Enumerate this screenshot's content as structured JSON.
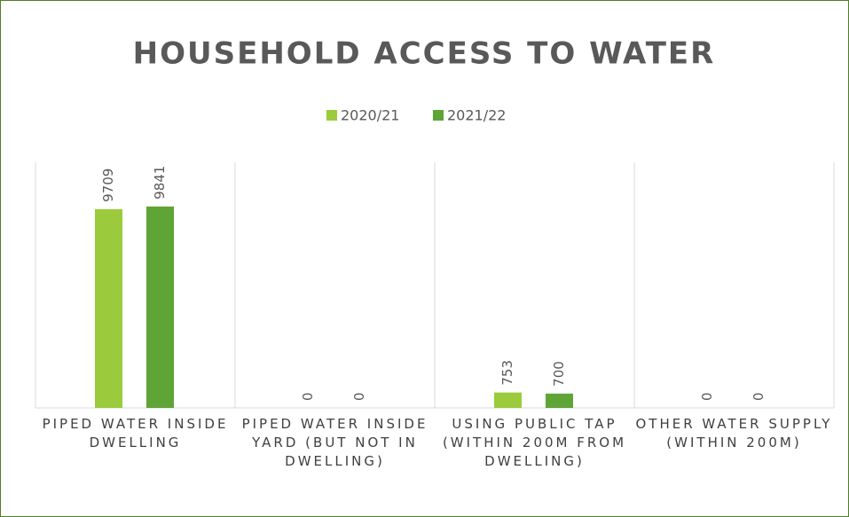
{
  "chart_data": {
    "type": "bar",
    "title": "HOUSEHOLD ACCESS TO WATER",
    "categories": [
      "PIPED WATER INSIDE DWELLING",
      "PIPED WATER INSIDE YARD (BUT NOT IN DWELLING)",
      "USING PUBLIC TAP (WITHIN 200M FROM DWELLING)",
      "OTHER WATER SUPPLY (WITHIN 200M)"
    ],
    "series": [
      {
        "name": "2020/21",
        "color": "#9bcb3c",
        "values": [
          9709,
          0,
          753,
          0
        ]
      },
      {
        "name": "2021/22",
        "color": "#5fa437",
        "values": [
          9841,
          0,
          700,
          0
        ]
      }
    ],
    "ylim": [
      0,
      12000
    ],
    "legend": "top"
  }
}
